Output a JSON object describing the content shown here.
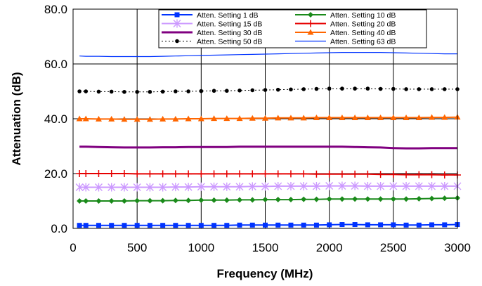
{
  "chart_data": {
    "type": "line",
    "title": "",
    "xlabel": "Frequency (MHz)",
    "ylabel": "Attenuation (dB)",
    "xlim": [
      0,
      3000
    ],
    "ylim": [
      0,
      80
    ],
    "xticks": [
      "0",
      "500",
      "1000",
      "1500",
      "2000",
      "2500",
      "3000"
    ],
    "yticks": [
      "0.0",
      "20.0",
      "40.0",
      "60.0",
      "80.0"
    ],
    "grid": true,
    "legend_position": "top-right",
    "x": [
      50,
      100,
      200,
      300,
      400,
      500,
      600,
      700,
      800,
      900,
      1000,
      1100,
      1200,
      1300,
      1400,
      1500,
      1600,
      1700,
      1800,
      1900,
      2000,
      2100,
      2200,
      2300,
      2400,
      2500,
      2600,
      2700,
      2800,
      2900,
      3000
    ],
    "series": [
      {
        "name": "Atten. Setting 1 dB",
        "color": "#0033ff",
        "marker": "square",
        "values": [
          1.1,
          1.1,
          1.1,
          1.1,
          1.1,
          1.1,
          1.1,
          1.1,
          1.1,
          1.1,
          1.1,
          1.1,
          1.1,
          1.2,
          1.2,
          1.2,
          1.2,
          1.2,
          1.2,
          1.2,
          1.3,
          1.4,
          1.4,
          1.3,
          1.3,
          1.3,
          1.2,
          1.2,
          1.3,
          1.3,
          1.4
        ]
      },
      {
        "name": "Atten. Setting 10 dB",
        "color": "#1a8a1a",
        "marker": "diamond",
        "values": [
          10.0,
          10.0,
          10.0,
          10.0,
          10.0,
          10.1,
          10.1,
          10.1,
          10.2,
          10.2,
          10.3,
          10.3,
          10.3,
          10.4,
          10.4,
          10.5,
          10.5,
          10.5,
          10.6,
          10.6,
          10.7,
          10.7,
          10.7,
          10.7,
          10.7,
          10.7,
          10.7,
          10.8,
          10.9,
          11.0,
          11.1
        ]
      },
      {
        "name": "Atten. Setting 15 dB",
        "color": "#cc99ff",
        "marker": "asterisk",
        "values": [
          15.0,
          15.0,
          15.0,
          15.0,
          15.0,
          15.0,
          15.0,
          15.0,
          15.1,
          15.1,
          15.2,
          15.2,
          15.2,
          15.2,
          15.3,
          15.3,
          15.4,
          15.4,
          15.4,
          15.4,
          15.5,
          15.5,
          15.5,
          15.4,
          15.4,
          15.4,
          15.4,
          15.4,
          15.4,
          15.4,
          15.4
        ]
      },
      {
        "name": "Atten. Setting 20 dB",
        "color": "#e60000",
        "marker": "plus",
        "values": [
          20.0,
          20.0,
          20.0,
          20.0,
          20.0,
          19.9,
          19.9,
          19.9,
          19.9,
          19.9,
          19.9,
          19.9,
          19.9,
          19.9,
          19.9,
          19.9,
          19.9,
          19.9,
          19.9,
          19.8,
          19.8,
          19.8,
          19.8,
          19.8,
          19.7,
          19.7,
          19.6,
          19.6,
          19.6,
          19.5,
          19.5
        ]
      },
      {
        "name": "Atten. Setting 30 dB",
        "color": "#800080",
        "marker": "none",
        "values": [
          29.8,
          29.8,
          29.7,
          29.6,
          29.5,
          29.5,
          29.5,
          29.6,
          29.6,
          29.7,
          29.7,
          29.7,
          29.7,
          29.8,
          29.8,
          29.8,
          29.8,
          29.8,
          29.8,
          29.8,
          29.8,
          29.8,
          29.7,
          29.6,
          29.5,
          29.3,
          29.2,
          29.2,
          29.3,
          29.3,
          29.3
        ]
      },
      {
        "name": "Atten. Setting 40 dB",
        "color": "#ff6600",
        "marker": "triangle",
        "values": [
          40.0,
          40.0,
          39.9,
          39.9,
          39.8,
          39.8,
          39.8,
          39.9,
          39.9,
          40.0,
          40.0,
          40.1,
          40.1,
          40.1,
          40.2,
          40.2,
          40.3,
          40.3,
          40.3,
          40.4,
          40.4,
          40.4,
          40.4,
          40.4,
          40.4,
          40.4,
          40.4,
          40.4,
          40.5,
          40.5,
          40.6
        ]
      },
      {
        "name": "Atten. Setting 50 dB",
        "color": "#000000",
        "marker": "circle",
        "dashed": true,
        "values": [
          50.0,
          50.0,
          49.9,
          49.9,
          49.8,
          49.8,
          49.8,
          49.9,
          50.0,
          50.0,
          50.1,
          50.2,
          50.2,
          50.3,
          50.4,
          50.5,
          50.6,
          50.7,
          50.8,
          50.9,
          51.0,
          51.0,
          51.0,
          51.0,
          50.9,
          50.9,
          50.8,
          50.8,
          50.8,
          50.8,
          50.8
        ]
      },
      {
        "name": "Atten. Setting 63 dB",
        "color": "#0033ff",
        "marker": "none",
        "values": [
          62.9,
          62.8,
          62.8,
          62.7,
          62.7,
          62.7,
          62.7,
          62.8,
          62.9,
          63.0,
          63.1,
          63.2,
          63.3,
          63.4,
          63.5,
          63.6,
          63.7,
          63.8,
          63.9,
          64.0,
          64.1,
          64.2,
          64.2,
          64.2,
          64.2,
          64.1,
          64.0,
          63.9,
          63.8,
          63.7,
          63.7
        ]
      }
    ]
  }
}
